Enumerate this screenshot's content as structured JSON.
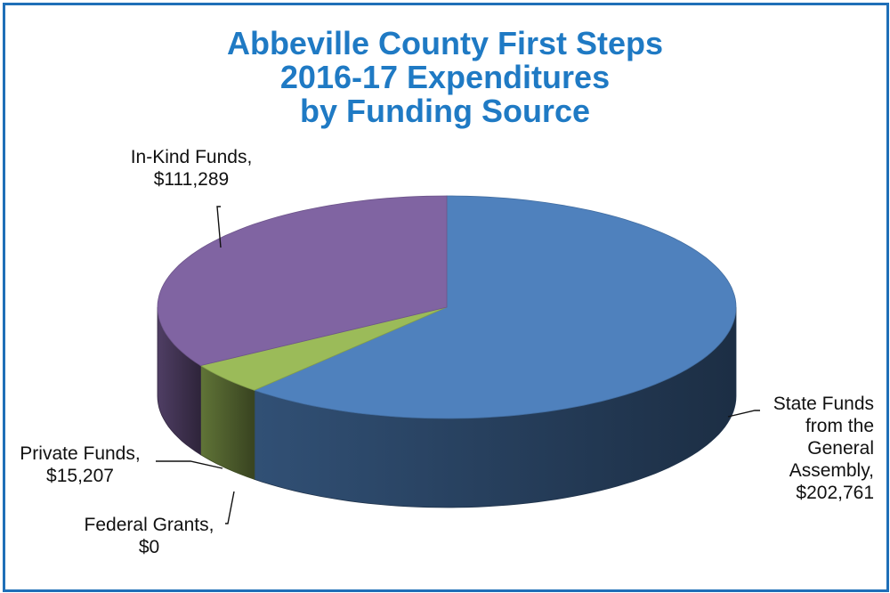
{
  "chart_data": {
    "type": "pie",
    "title": [
      "Abbeville County First Steps",
      "2016-17 Expenditures",
      "by Funding Source"
    ],
    "currency_symbol": "$",
    "slices": [
      {
        "name": "State Funds from the General Assembly",
        "value": 202761,
        "color": "#4f81bd",
        "label_lines": [
          "State Funds",
          "from the",
          "General",
          "Assembly,",
          "$202,761"
        ]
      },
      {
        "name": "Federal Grants",
        "value": 0,
        "color": "#c0504d",
        "label_lines": [
          "Federal Grants,",
          "$0"
        ]
      },
      {
        "name": "Private Funds",
        "value": 15207,
        "color": "#9bbb59",
        "label_lines": [
          "Private Funds,",
          "$15,207"
        ]
      },
      {
        "name": "In-Kind Funds",
        "value": 111289,
        "color": "#8064a2",
        "label_lines": [
          "In-Kind Funds,",
          "$111,289"
        ]
      }
    ],
    "frame_color": "#1f6fb8",
    "title_color": "#1f7ac4"
  }
}
